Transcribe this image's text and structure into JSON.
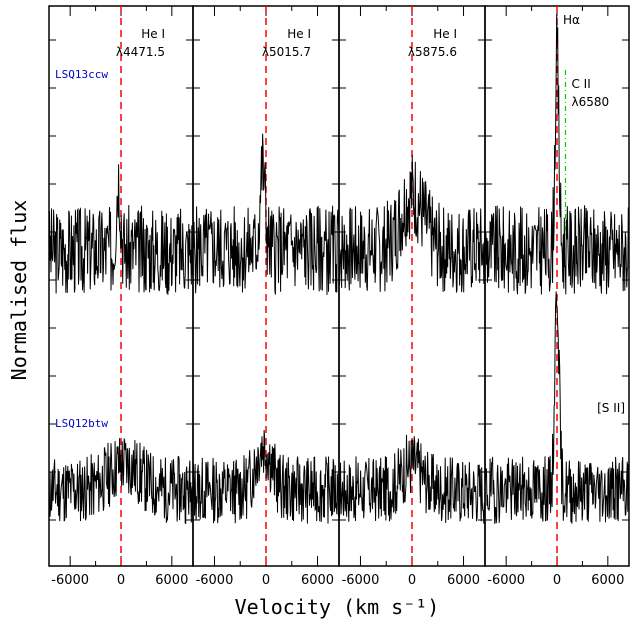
{
  "chart_data": {
    "type": "line",
    "xlabel": "Velocity (km s⁻¹)",
    "ylabel": "Normalised flux",
    "xlim": [
      -8500,
      8500
    ],
    "xticks": [
      "-6000",
      "0",
      "6000"
    ],
    "objects": [
      {
        "name": "LSQ13ccw",
        "color": "#0000cc"
      },
      {
        "name": "LSQ12btw",
        "color": "#0000cc"
      }
    ],
    "panels": [
      {
        "line_labels": [
          "He I",
          "λ4471.5"
        ],
        "top_seed": 3,
        "bottom_seed": 11,
        "top_peak": {
          "x": -300,
          "h": 1.0,
          "w": 250
        },
        "bottom_peak": {
          "x": 400,
          "h": 0.35,
          "w": 1800
        }
      },
      {
        "line_labels": [
          "He I",
          "λ5015.7"
        ],
        "top_seed": 5,
        "bottom_seed": 13,
        "top_peak": {
          "x": -400,
          "h": 1.1,
          "w": 300
        },
        "bottom_peak": {
          "x": -300,
          "h": 0.6,
          "w": 900
        }
      },
      {
        "line_labels": [
          "He I",
          "λ5875.6"
        ],
        "top_seed": 7,
        "bottom_seed": 17,
        "top_peak": {
          "x": 0,
          "h": 0.75,
          "w": 1300
        },
        "bottom_peak": {
          "x": 0,
          "h": 0.35,
          "w": 1200
        }
      },
      {
        "line_labels": [
          "Hα",
          ""
        ],
        "extra_label": [
          "C II",
          "λ6580"
        ],
        "extra_label2": "[S II]",
        "top_seed": 9,
        "bottom_seed": 19,
        "top_peak": {
          "x": 0,
          "h": 2.6,
          "w": 220
        },
        "bottom_peak": {
          "x": 0,
          "h": 2.7,
          "w": 250
        }
      }
    ],
    "marker_velocity": 0,
    "cii_velocity": 1000,
    "colors": {
      "marker": "#ff0000",
      "cii": "#00cc00",
      "spectrum": "#000000"
    }
  }
}
